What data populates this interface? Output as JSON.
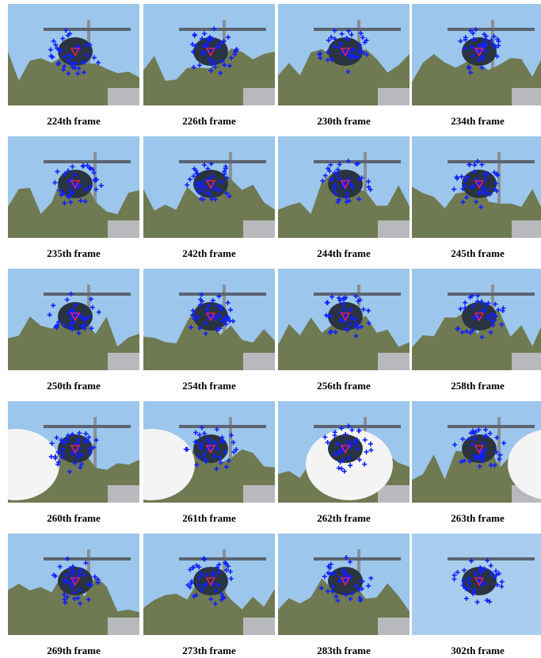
{
  "frames": [
    {
      "label": "224th frame"
    },
    {
      "label": "226th frame"
    },
    {
      "label": "230th frame"
    },
    {
      "label": "234th frame"
    },
    {
      "label": "235th frame"
    },
    {
      "label": "242th frame"
    },
    {
      "label": "244th frame"
    },
    {
      "label": "245th frame"
    },
    {
      "label": "250th frame"
    },
    {
      "label": "254th frame"
    },
    {
      "label": "256th frame"
    },
    {
      "label": "258th frame"
    },
    {
      "label": "260th frame"
    },
    {
      "label": "261th frame"
    },
    {
      "label": "262th frame"
    },
    {
      "label": "263th frame"
    },
    {
      "label": "269th frame"
    },
    {
      "label": "273th frame"
    },
    {
      "label": "283th frame"
    },
    {
      "label": "302th frame"
    }
  ]
}
